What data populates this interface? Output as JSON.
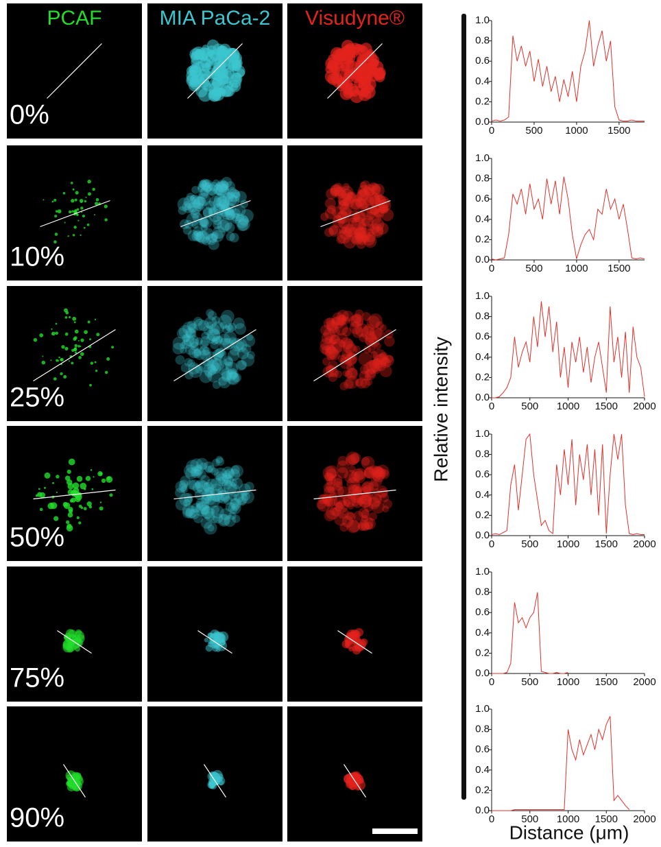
{
  "columns": [
    "PCAF",
    "MIA PaCa-2",
    "Visudyne®"
  ],
  "column_colors": [
    "#22dd2a",
    "#3cc6d0",
    "#e3231d"
  ],
  "rows": [
    "0%",
    "10%",
    "25%",
    "50%",
    "75%",
    "90%"
  ],
  "ylabel": "Relative intensity",
  "xlabel": "Distance (μm)",
  "chart_data": [
    {
      "type": "line",
      "color": "#e0302a",
      "x": [
        0,
        50,
        100,
        150,
        200,
        250,
        300,
        350,
        400,
        450,
        500,
        550,
        600,
        650,
        700,
        750,
        800,
        850,
        900,
        950,
        1000,
        1050,
        1100,
        1150,
        1200,
        1250,
        1300,
        1350,
        1400,
        1450,
        1500,
        1550,
        1600,
        1650,
        1700,
        1750,
        1800
      ],
      "values": [
        0.01,
        0.02,
        0.01,
        0.02,
        0.05,
        0.85,
        0.6,
        0.75,
        0.55,
        0.7,
        0.4,
        0.62,
        0.35,
        0.55,
        0.3,
        0.45,
        0.2,
        0.42,
        0.25,
        0.5,
        0.2,
        0.55,
        0.7,
        1.0,
        0.55,
        0.75,
        0.9,
        0.6,
        0.8,
        0.15,
        0.02,
        0.01,
        0.01,
        0.02,
        0.01,
        0.01,
        0.01
      ],
      "xlim": [
        0,
        1800
      ],
      "ylim": [
        0,
        1
      ],
      "xticks": [
        0,
        500,
        1000,
        1500
      ],
      "yticks": [
        {
          "value": 0,
          "label": "0.0"
        },
        0.2,
        0.4,
        0.6,
        0.8,
        {
          "value": 1,
          "label": "1.0"
        }
      ]
    },
    {
      "type": "line",
      "color": "#e0302a",
      "x": [
        0,
        50,
        100,
        150,
        200,
        250,
        300,
        350,
        400,
        450,
        500,
        550,
        600,
        650,
        700,
        750,
        800,
        850,
        900,
        950,
        1000,
        1050,
        1100,
        1150,
        1200,
        1250,
        1300,
        1350,
        1400,
        1450,
        1500,
        1550,
        1600,
        1650,
        1700,
        1750,
        1800
      ],
      "values": [
        0.01,
        0.0,
        0.01,
        0.02,
        0.25,
        0.65,
        0.55,
        0.7,
        0.45,
        0.75,
        0.5,
        0.6,
        0.4,
        0.8,
        0.55,
        0.78,
        0.45,
        0.82,
        0.6,
        0.25,
        0.01,
        0.15,
        0.25,
        0.3,
        0.2,
        0.5,
        0.45,
        0.7,
        0.5,
        0.6,
        0.4,
        0.55,
        0.3,
        0.02,
        0.01,
        0.02,
        0.01
      ],
      "xlim": [
        0,
        1800
      ],
      "ylim": [
        0,
        1
      ],
      "xticks": [
        0,
        500,
        1000,
        1500
      ],
      "yticks": [
        {
          "value": 0,
          "label": "0.0"
        },
        0.2,
        0.4,
        0.6,
        0.8,
        {
          "value": 1,
          "label": "1.0"
        }
      ]
    },
    {
      "type": "line",
      "color": "#e0302a",
      "x": [
        0,
        50,
        100,
        150,
        200,
        250,
        300,
        350,
        400,
        450,
        500,
        550,
        600,
        650,
        700,
        750,
        800,
        850,
        900,
        950,
        1000,
        1050,
        1100,
        1150,
        1200,
        1250,
        1300,
        1350,
        1400,
        1450,
        1500,
        1550,
        1600,
        1650,
        1700,
        1750,
        1800,
        1850,
        1900,
        1950,
        2000
      ],
      "values": [
        0.0,
        0.0,
        0.01,
        0.05,
        0.1,
        0.2,
        0.6,
        0.3,
        0.45,
        0.55,
        0.35,
        0.8,
        0.5,
        0.95,
        0.6,
        0.9,
        0.45,
        0.75,
        0.2,
        0.5,
        0.1,
        0.55,
        0.35,
        0.6,
        0.25,
        0.5,
        0.15,
        0.4,
        0.55,
        0.3,
        0.05,
        0.9,
        0.35,
        0.6,
        0.2,
        0.65,
        0.05,
        0.7,
        0.4,
        0.3,
        0.01
      ],
      "xlim": [
        0,
        2000
      ],
      "ylim": [
        0,
        1
      ],
      "xticks": [
        0,
        500,
        1000,
        1500,
        2000
      ],
      "yticks": [
        {
          "value": 0,
          "label": "0.0"
        },
        0.2,
        0.4,
        0.6,
        0.8,
        {
          "value": 1,
          "label": "1.0"
        }
      ]
    },
    {
      "type": "line",
      "color": "#e0302a",
      "x": [
        0,
        50,
        100,
        150,
        200,
        250,
        300,
        350,
        400,
        450,
        500,
        550,
        600,
        650,
        700,
        750,
        800,
        850,
        900,
        950,
        1000,
        1050,
        1100,
        1150,
        1200,
        1250,
        1300,
        1350,
        1400,
        1450,
        1500,
        1550,
        1600,
        1650,
        1700,
        1750,
        1800,
        1850,
        1900,
        1950,
        2000
      ],
      "values": [
        0.01,
        0.02,
        0.01,
        0.03,
        0.05,
        0.5,
        0.7,
        0.25,
        0.6,
        0.95,
        1.0,
        0.6,
        0.35,
        0.1,
        0.15,
        0.05,
        0.02,
        0.7,
        0.4,
        0.85,
        0.5,
        0.95,
        0.3,
        0.8,
        0.55,
        0.9,
        0.4,
        0.85,
        0.2,
        0.9,
        0.02,
        0.6,
        1.0,
        0.75,
        1.0,
        0.3,
        0.02,
        0.01,
        0.02,
        0.01,
        0.01
      ],
      "xlim": [
        0,
        2000
      ],
      "ylim": [
        0,
        1
      ],
      "xticks": [
        0,
        500,
        1000,
        1500,
        2000
      ],
      "yticks": [
        {
          "value": 0,
          "label": "0.0"
        },
        0.2,
        0.4,
        0.6,
        0.8,
        {
          "value": 1,
          "label": "1.0"
        }
      ]
    },
    {
      "type": "line",
      "color": "#e0302a",
      "x": [
        0,
        50,
        100,
        150,
        200,
        250,
        300,
        350,
        400,
        450,
        500,
        550,
        600,
        650,
        700,
        750,
        800,
        850,
        900,
        950,
        1000
      ],
      "values": [
        0.0,
        0.0,
        0.0,
        0.0,
        0.01,
        0.1,
        0.7,
        0.5,
        0.55,
        0.45,
        0.55,
        0.6,
        0.8,
        0.02,
        0.01,
        0.0,
        0.0,
        0.01,
        0.0,
        0.0,
        0.01
      ],
      "xlim": [
        0,
        2000
      ],
      "ylim": [
        0,
        1
      ],
      "xticks": [
        0,
        500,
        1000,
        1500,
        2000
      ],
      "yticks": [
        {
          "value": 0,
          "label": "0.0"
        },
        0.2,
        0.4,
        0.6,
        0.8,
        {
          "value": 1,
          "label": "1.0"
        }
      ]
    },
    {
      "type": "line",
      "color": "#e0302a",
      "x": [
        0,
        50,
        100,
        150,
        200,
        250,
        300,
        350,
        400,
        450,
        500,
        550,
        600,
        650,
        700,
        750,
        800,
        850,
        900,
        950,
        1000,
        1050,
        1100,
        1150,
        1200,
        1250,
        1300,
        1350,
        1400,
        1450,
        1500,
        1550,
        1600,
        1650,
        1700,
        1750,
        1800
      ],
      "values": [
        0.0,
        0.0,
        0.0,
        0.0,
        0.0,
        0.0,
        0.01,
        0.01,
        0.01,
        0.01,
        0.01,
        0.01,
        0.01,
        0.01,
        0.01,
        0.01,
        0.01,
        0.01,
        0.01,
        0.01,
        0.8,
        0.6,
        0.5,
        0.7,
        0.55,
        0.65,
        0.75,
        0.6,
        0.8,
        0.7,
        0.85,
        0.93,
        0.1,
        0.15,
        0.1,
        0.05,
        0.01
      ],
      "xlim": [
        0,
        2000
      ],
      "ylim": [
        0,
        1
      ],
      "xticks": [
        0,
        500,
        1000,
        1500,
        2000
      ],
      "yticks": [
        {
          "value": 0,
          "label": "0.0"
        },
        0.2,
        0.4,
        0.6,
        0.8,
        {
          "value": 1,
          "label": "1.0"
        }
      ]
    }
  ]
}
